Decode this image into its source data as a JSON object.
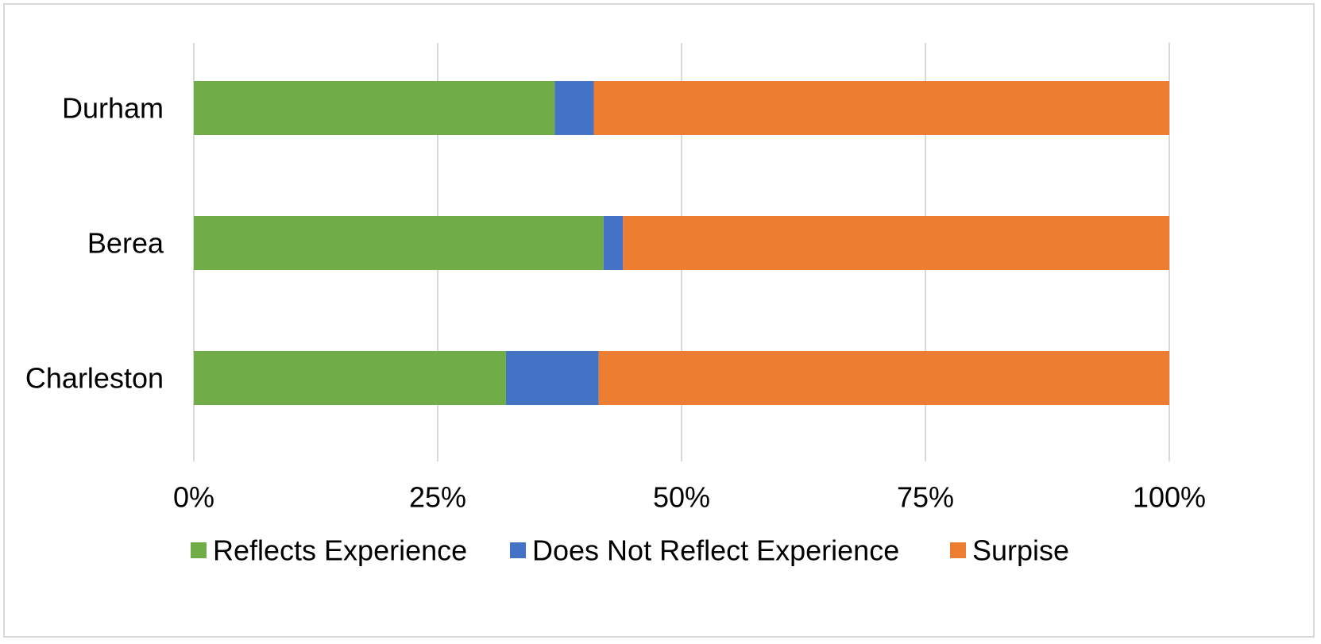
{
  "chart_data": {
    "type": "bar",
    "orientation": "horizontal",
    "stacked": true,
    "normalized": true,
    "categories": [
      "Durham",
      "Berea",
      "Charleston"
    ],
    "series": [
      {
        "name": "Reflects Experience",
        "color": "#70ad47",
        "values": [
          37,
          42,
          32
        ]
      },
      {
        "name": "Does Not Reflect Experience",
        "color": "#4472c4",
        "values": [
          4,
          2,
          9.5
        ]
      },
      {
        "name": "Surpise",
        "color": "#ed7d31",
        "values": [
          59,
          56,
          58.5
        ]
      }
    ],
    "xlim": [
      0,
      100
    ],
    "xticks": [
      0,
      25,
      50,
      75,
      100
    ],
    "xtick_labels": [
      "0%",
      "25%",
      "50%",
      "75%",
      "100%"
    ],
    "grid": "vertical",
    "gridline_color": "#d9d9d9",
    "legend_position": "bottom"
  }
}
